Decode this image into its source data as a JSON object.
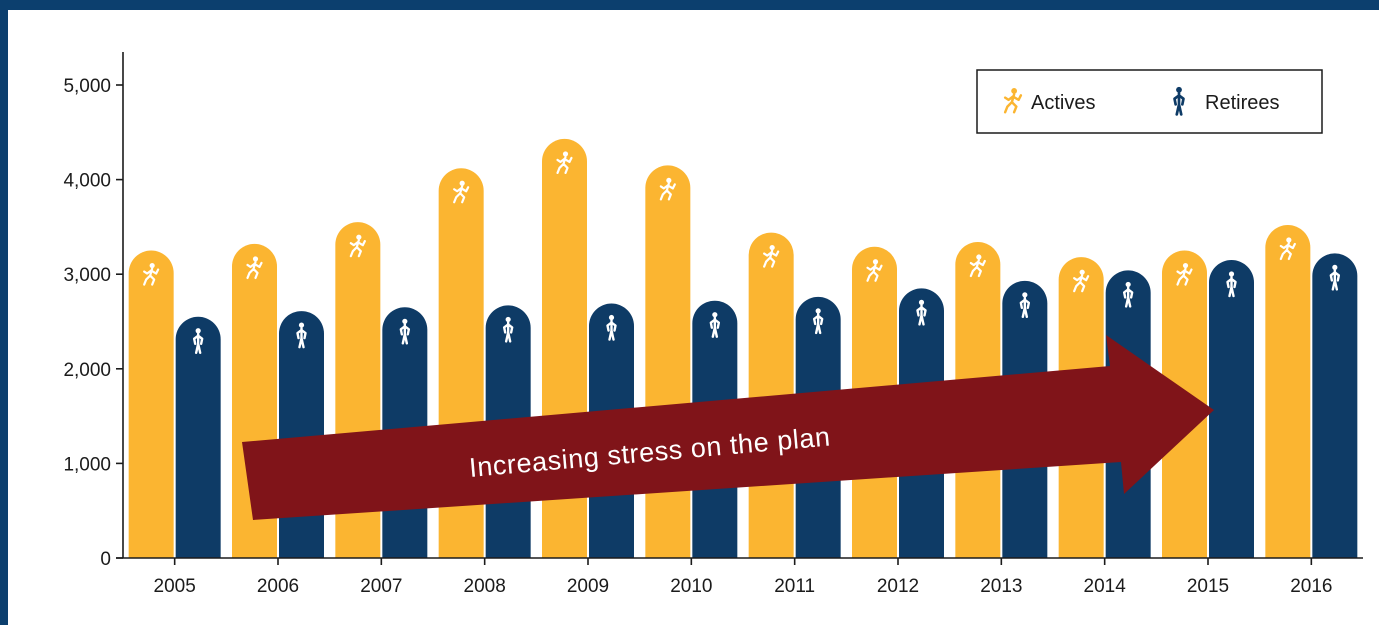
{
  "colors": {
    "page_border": "#0c3f6e",
    "actives": "#fbb531",
    "retirees": "#0e3b66",
    "arrow": "#801419",
    "axis": "#1b1b1b"
  },
  "icons": {
    "actives": "running-person-icon",
    "retirees": "standing-person-icon"
  },
  "chart_data": {
    "type": "bar",
    "categories": [
      "2005",
      "2006",
      "2007",
      "2008",
      "2009",
      "2010",
      "2011",
      "2012",
      "2013",
      "2014",
      "2015",
      "2016"
    ],
    "series": [
      {
        "name": "Actives",
        "color": "#fbb531",
        "values": [
          3250,
          3320,
          3550,
          4120,
          4430,
          4150,
          3440,
          3290,
          3340,
          3180,
          3250,
          3520
        ]
      },
      {
        "name": "Retirees",
        "color": "#0e3b66",
        "values": [
          2550,
          2610,
          2650,
          2670,
          2690,
          2720,
          2760,
          2850,
          2930,
          3040,
          3150,
          3220
        ]
      }
    ],
    "ylim": [
      0,
      5000
    ],
    "yticks": [
      0,
      1000,
      2000,
      3000,
      4000,
      5000
    ],
    "ytick_labels": [
      "0",
      "1,000",
      "2,000",
      "3,000",
      "4,000",
      "5,000"
    ],
    "grid": false,
    "legend_position": "top-right",
    "title": "",
    "xlabel": "",
    "ylabel": "",
    "annotation": "Increasing stress on the plan"
  }
}
